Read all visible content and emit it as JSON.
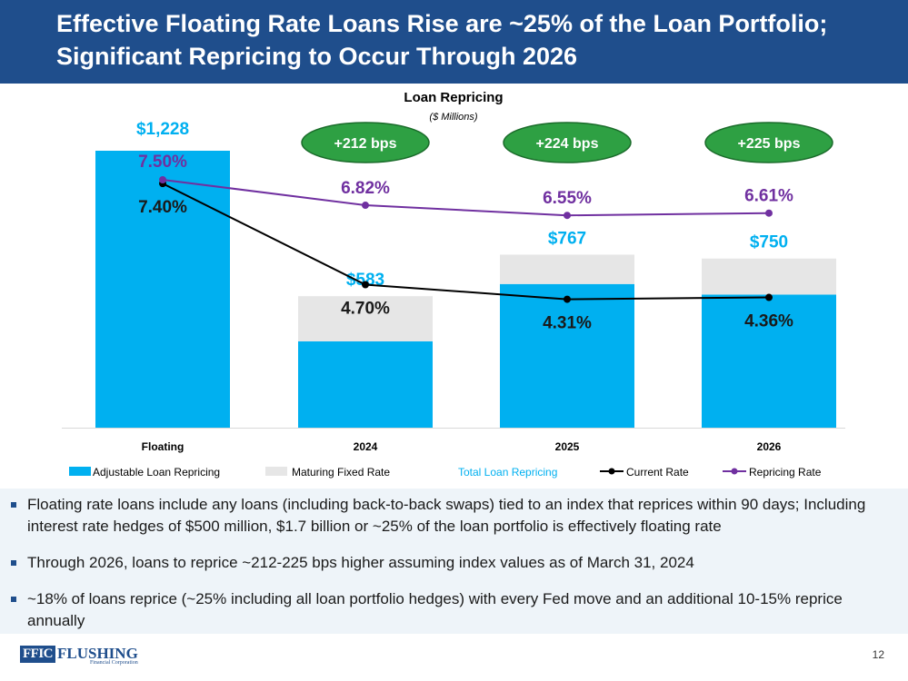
{
  "slide": {
    "title_line1": "Effective Floating Rate Loans Rise are ~25% of the Loan Portfolio;",
    "title_line2": "Significant Repricing to Occur Through 2026",
    "page_number": "12"
  },
  "colors": {
    "title_bg": "#1f4e8c",
    "adjustable": "#00b0f0",
    "maturing": "#e6e6e6",
    "total_label": "#00b0f0",
    "current_rate": "#000000",
    "repricing_rate": "#7030a0",
    "bubble_fill": "#2ea043",
    "bubble_stroke": "#1a6b2a"
  },
  "chart_data": {
    "type": "bar",
    "title": "Loan Repricing",
    "subtitle": "($ Millions)",
    "categories": [
      "Floating",
      "2024",
      "2025",
      "2026"
    ],
    "ylim": [
      0,
      1300
    ],
    "series": [
      {
        "name": "Adjustable Loan Repricing",
        "type": "stacked-bar",
        "values": [
          1228,
          383,
          637,
          590
        ]
      },
      {
        "name": "Maturing Fixed Rate",
        "type": "stacked-bar",
        "values": [
          0,
          200,
          130,
          160
        ]
      },
      {
        "name": "Total Loan Repricing",
        "type": "label",
        "values": [
          1228,
          583,
          767,
          750
        ],
        "labels": [
          "$1,228",
          "$583",
          "$767",
          "$750"
        ]
      },
      {
        "name": "Current Rate",
        "type": "line",
        "values": [
          7.4,
          4.7,
          4.31,
          4.36
        ],
        "labels": [
          "7.40%",
          "4.70%",
          "4.31%",
          "4.36%"
        ]
      },
      {
        "name": "Repricing Rate",
        "type": "line",
        "values": [
          7.5,
          6.82,
          6.55,
          6.61
        ],
        "labels": [
          "7.50%",
          "6.82%",
          "6.55%",
          "6.61%"
        ]
      }
    ],
    "annotations": [
      {
        "category": "2024",
        "text": "+212 bps"
      },
      {
        "category": "2025",
        "text": "+224 bps"
      },
      {
        "category": "2026",
        "text": "+225 bps"
      }
    ],
    "legend": [
      "Adjustable Loan Repricing",
      "Maturing Fixed Rate",
      "Total Loan Repricing",
      "Current Rate",
      "Repricing Rate"
    ],
    "legend_position": "bottom"
  },
  "bullets": [
    "Floating rate loans include any loans (including back-to-back swaps) tied to an index that reprices within 90 days; Including interest rate hedges of $500 million, $1.7 billion or ~25% of the loan portfolio  is effectively floating rate",
    "Through 2026, loans to reprice ~212-225 bps higher assuming index values as of March 31, 2024",
    "~18% of loans reprice (~25% including all loan portfolio hedges) with every Fed move and an additional 10-15% reprice annually"
  ],
  "logo": {
    "mark": "FFIC",
    "name": "FLUSHING",
    "subname": "Financial Corporation"
  }
}
